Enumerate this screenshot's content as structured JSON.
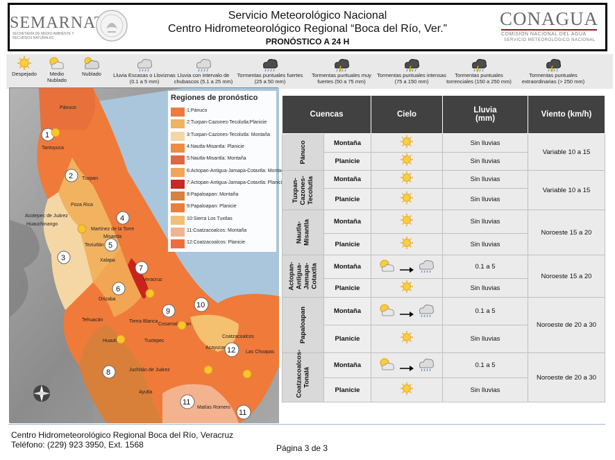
{
  "header": {
    "semarnat": "SEMARNAT",
    "semarnat_sub": "SECRETARÍA DE MEDIO AMBIENTE Y RECURSOS NATURALES",
    "title_line1": "Servicio Meteorológico Nacional",
    "title_line2": "Centro Hidrometeorológico Regional “Boca del Río, Ver.”",
    "title_line3": "PRONÓSTICO A 24 H",
    "conagua": "CONAGUA",
    "conagua_sub1": "COMISIÓN NACIONAL DEL AGUA",
    "conagua_sub2": "SERVICIO METEOROLÓGICO NACIONAL"
  },
  "weather_legend": [
    {
      "label": "Despejado",
      "icon": "sun-icon"
    },
    {
      "label": "Medio Nublado",
      "icon": "partly-cloudy-icon"
    },
    {
      "label": "Nublado",
      "icon": "cloudy-icon"
    },
    {
      "label": "Lluvia Escasas o Lloviznas (0.1 a 5 mm)",
      "icon": "drizzle-icon"
    },
    {
      "label": "Lluvia con intervalo de chubascos (5.1 a 25 mm)",
      "icon": "showers-icon"
    },
    {
      "label": "Tormentas puntuales fuertes (25 a 50 mm)",
      "icon": "storm-strong-icon"
    },
    {
      "label": "Tormentas puntuales muy fuertes (50 a 75 mm)",
      "icon": "storm-very-strong-icon"
    },
    {
      "label": "Tormentas puntuales intensas (75 a 150 mm)",
      "icon": "storm-intense-icon"
    },
    {
      "label": "Tormentas puntuales torrenciales (150 a 250 mm)",
      "icon": "storm-torrential-icon"
    },
    {
      "label": "Tormentas puntuales extraordinarias (> 250 mm)",
      "icon": "storm-extraordinary-icon"
    }
  ],
  "regions": {
    "title": "Regiones de pronóstico",
    "items": [
      {
        "label": "1:Pánuco",
        "color": "#f07a3a"
      },
      {
        "label": "2:Tuxpan-Cazones-Tecolutla:Planicie",
        "color": "#f2b360"
      },
      {
        "label": "3:Tuxpan-Cazones-Tecolutla: Montaña",
        "color": "#f5d7a6"
      },
      {
        "label": "4:Nautla-Misantla: Planicie",
        "color": "#ee8b3f"
      },
      {
        "label": "5:Nautla-Misantla: Montaña",
        "color": "#e2653a"
      },
      {
        "label": "6:Actopan-Antigua-Jamapa-Cotaxtla: Montaña",
        "color": "#f2a552"
      },
      {
        "label": "7:Actopan-Antigua-Jamapa-Cotaxtla: Planicie",
        "color": "#c8241d"
      },
      {
        "label": "8:Papaloapan: Montaña",
        "color": "#d8803a"
      },
      {
        "label": "9:Papaloapan: Planicie",
        "color": "#f07c33"
      },
      {
        "label": "10:Sierra Los Tuxtlas",
        "color": "#f5c070"
      },
      {
        "label": "11:Coatzacoalcos: Montaña",
        "color": "#f3b38f"
      },
      {
        "label": "12:Coatzacoalcos: Planicie",
        "color": "#ee6c38"
      }
    ]
  },
  "map": {
    "places": [
      "Pánuco",
      "Tantoyuca",
      "Tuxpan",
      "Poza Rica",
      "Acotepec de Juárez",
      "Huauchinango",
      "Martínez de la Torre",
      "Misantla",
      "Teziutlán",
      "Xalapa",
      "Veracruz",
      "Orizaba",
      "Tehuacán",
      "Tierra Blanca",
      "Cosamaloapan",
      "Huautla",
      "Tuxtepec",
      "Coatzacoalcos",
      "Acayucan",
      "Las Choapas",
      "Juchitán de Juárez",
      "Ayutla",
      "Matías Romero"
    ],
    "region_numbers": [
      "1",
      "2",
      "3",
      "4",
      "5",
      "6",
      "7",
      "8",
      "9",
      "10",
      "11",
      "12",
      "11"
    ]
  },
  "table": {
    "headers": {
      "basin": "Cuencas",
      "sky": "Cielo",
      "rain": "Lluvia\n(mm)",
      "wind": "Viento (km/h)"
    },
    "basins": [
      {
        "name": "Pánuco",
        "wind": "Variable 10 a 15",
        "rows": [
          {
            "zone": "Montaña",
            "sky": "sun",
            "rain": "Sin lluvias"
          },
          {
            "zone": "Planicie",
            "sky": "sun",
            "rain": "Sin lluvias"
          }
        ]
      },
      {
        "name": "Tuxpan-\nCazones-\nTecolutla",
        "wind": "Variable 10 a 15",
        "rows": [
          {
            "zone": "Montaña",
            "sky": "sun",
            "rain": "Sin lluvias"
          },
          {
            "zone": "Planicie",
            "sky": "sun",
            "rain": "Sin lluvias"
          }
        ]
      },
      {
        "name": "Nautla-\nMisantla",
        "wind": "Noroeste 15 a 20",
        "rows": [
          {
            "zone": "Montaña",
            "sky": "sun",
            "rain": "Sin lluvias"
          },
          {
            "zone": "Planicie",
            "sky": "sun",
            "rain": "Sin lluvias"
          }
        ]
      },
      {
        "name": "Actopan-\nAntigua-\nJamapa-\nCotaxtla",
        "wind": "Noroeste 15 a 20",
        "rows": [
          {
            "zone": "Montaña",
            "sky": "partly-to-rain",
            "rain": "0.1 a 5"
          },
          {
            "zone": "Planicie",
            "sky": "sun",
            "rain": "Sin lluvias"
          }
        ]
      },
      {
        "name": "Papaloapan",
        "wind": "Noroeste de 20 a 30",
        "rows": [
          {
            "zone": "Montaña",
            "sky": "partly-to-rain",
            "rain": "0.1 a 5"
          },
          {
            "zone": "Planicie",
            "sky": "sun",
            "rain": "Sin lluvias"
          }
        ]
      },
      {
        "name": "Coatzacoalcos-\nTonalá",
        "wind": "Noroeste de 20 a 30",
        "rows": [
          {
            "zone": "Montaña",
            "sky": "partly-to-rain",
            "rain": "0.1 a 5"
          },
          {
            "zone": "Planicie",
            "sky": "sun",
            "rain": "Sin lluvias"
          }
        ]
      }
    ]
  },
  "footer": {
    "line1": "Centro Hidrometeorológico Regional Boca del Río, Veracruz",
    "line2": "Teléfono: (229) 923 3950, Ext. 1568",
    "page": "Página 3 de 3"
  }
}
